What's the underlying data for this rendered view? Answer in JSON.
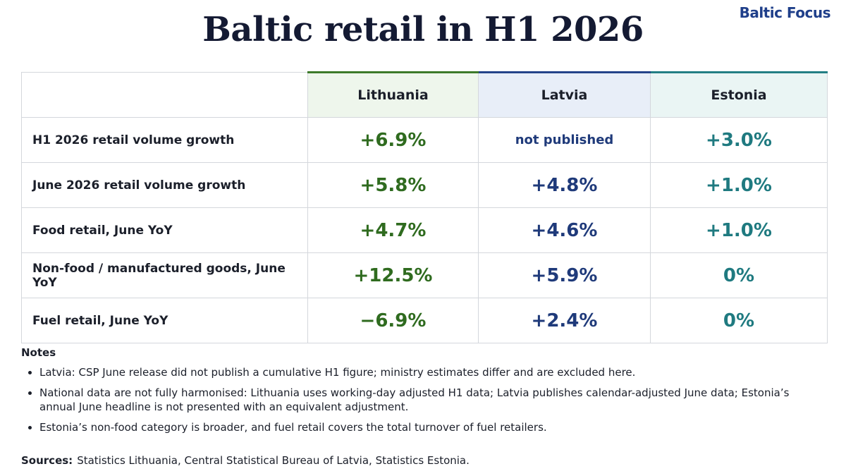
{
  "brand": "Baltic Focus",
  "title": "Baltic retail in H1 2026",
  "table": {
    "columns": [
      "Lithuania",
      "Latvia",
      "Estonia"
    ],
    "rows": [
      {
        "label": "H1 2026 retail volume growth",
        "cells": [
          "+6.9%",
          "not published",
          "+3.0%"
        ]
      },
      {
        "label": "June 2026 retail volume growth",
        "cells": [
          "+5.8%",
          "+4.8%",
          "+1.0%"
        ]
      },
      {
        "label": "Food retail, June YoY",
        "cells": [
          "+4.7%",
          "+4.6%",
          "+1.0%"
        ]
      },
      {
        "label": "Non-food / manufactured goods, June YoY",
        "cells": [
          "+12.5%",
          "+5.9%",
          "0%"
        ]
      },
      {
        "label": "Fuel retail, June YoY",
        "cells": [
          "−6.9%",
          "+2.4%",
          "0%"
        ]
      }
    ]
  },
  "notes": {
    "heading": "Notes",
    "items": [
      "Latvia: CSP June release did not publish a cumulative H1 figure; ministry estimates differ and are excluded here.",
      "National data are not fully harmonised: Lithuania uses working-day adjusted H1 data; Latvia publishes calendar-adjusted June data; Estonia’s annual June headline is not presented with an equivalent adjustment.",
      "Estonia’s non-food category is broader, and fuel retail covers the total turnover of fuel retailers."
    ]
  },
  "sources": {
    "label": "Sources:",
    "text": "Statistics Lithuania, Central Statistical Bureau of Latvia, Statistics Estonia."
  }
}
